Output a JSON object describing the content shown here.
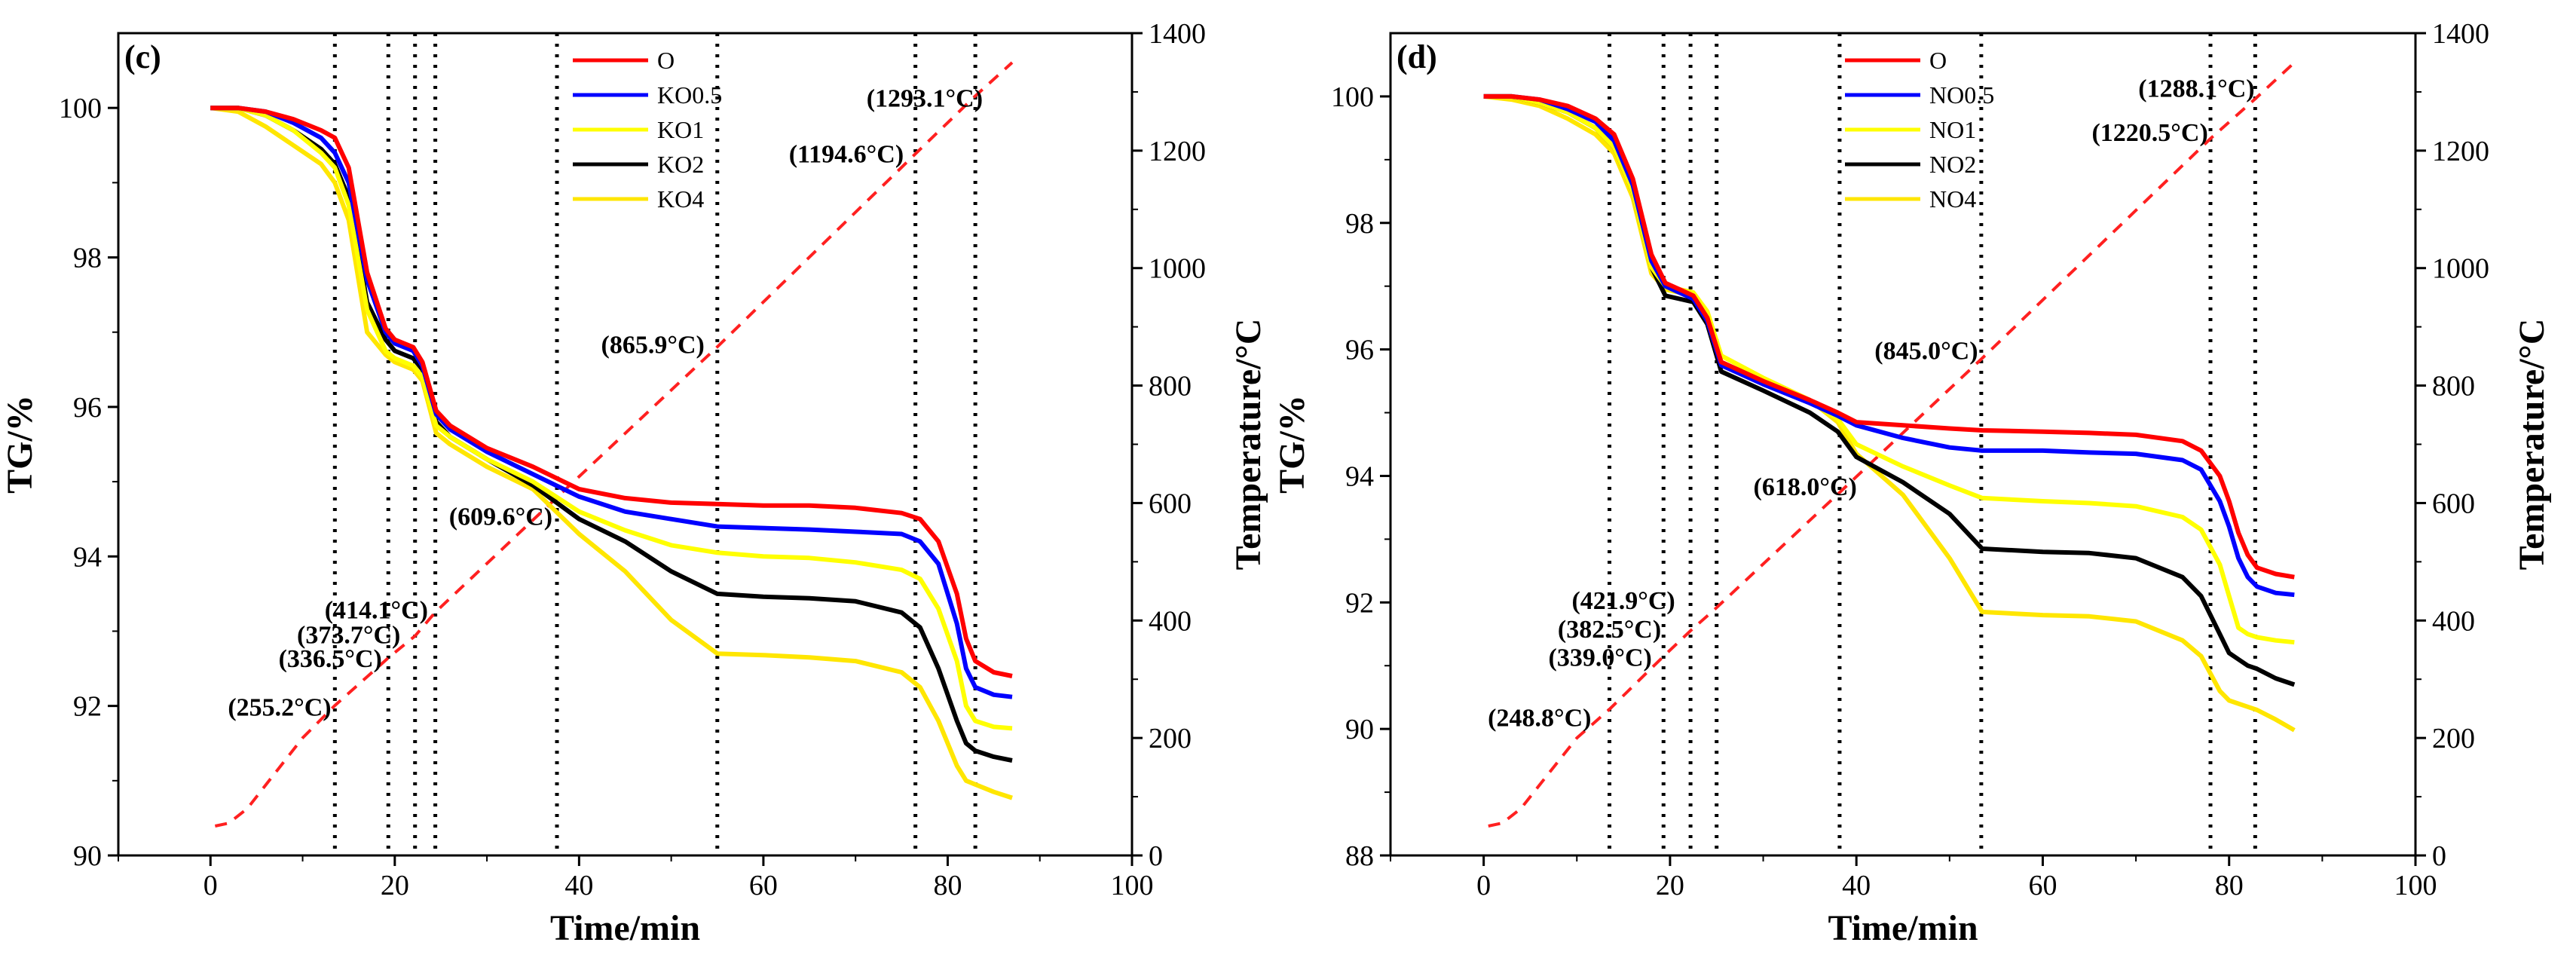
{
  "chart_data": [
    {
      "type": "line",
      "panel_label": "(c)",
      "xlabel": "Time/min",
      "ylabel": "TG/%",
      "y2label": "Temperature/°C",
      "xlim": [
        -10,
        100
      ],
      "ylim": [
        90,
        101
      ],
      "y2lim": [
        0,
        1400
      ],
      "xticks": [
        0,
        20,
        40,
        60,
        80,
        100
      ],
      "xtick_labels": [
        "0",
        "20",
        "40",
        "60",
        "80",
        "100"
      ],
      "yticks": [
        90,
        92,
        94,
        96,
        98,
        100
      ],
      "ytick_labels": [
        "90",
        "92",
        "94",
        "96",
        "98",
        "100"
      ],
      "y2ticks": [
        0,
        200,
        400,
        600,
        800,
        1000,
        1200,
        1400
      ],
      "y2tick_labels": [
        "0",
        "200",
        "400",
        "600",
        "800",
        "1000",
        "1200",
        "1400"
      ],
      "legend_position": "top-center",
      "vlines": [
        13.5,
        19.3,
        22.2,
        24.4,
        37.6,
        55.0,
        76.5,
        83.0
      ],
      "annotations": [
        {
          "text": "(255.2°C)",
          "x": 7.5,
          "y": 92.0
        },
        {
          "text": "(336.5°C)",
          "x": 13.0,
          "y": 92.65
        },
        {
          "text": "(373.7°C)",
          "x": 15.0,
          "y": 92.97
        },
        {
          "text": "(414.1°C)",
          "x": 18.0,
          "y": 93.3
        },
        {
          "text": "(609.6°C)",
          "x": 31.5,
          "y": 94.55
        },
        {
          "text": "(865.9°C)",
          "x": 48.0,
          "y": 96.85
        },
        {
          "text": "(1194.6°C)",
          "x": 69.0,
          "y": 99.4
        },
        {
          "text": "(1293.1°C)",
          "x": 77.5,
          "y": 100.15
        }
      ],
      "temperature_series": {
        "name": "Temperature",
        "color": "#ff2020",
        "x": [
          0.5,
          2,
          4,
          6,
          8,
          10,
          13.5,
          19.3,
          22.2,
          24.4,
          37.6,
          55,
          76.5,
          83,
          87
        ],
        "y": [
          50,
          55,
          80,
          120,
          160,
          200,
          255.2,
          336.5,
          373.7,
          414.1,
          609.6,
          865.9,
          1194.6,
          1293.1,
          1350
        ]
      },
      "series": [
        {
          "name": "O",
          "color": "#ff0000",
          "x": [
            0,
            3,
            6,
            9,
            12,
            13.5,
            15,
            17,
            19,
            20,
            22,
            23,
            24.5,
            26,
            30,
            35,
            40,
            45,
            50,
            55,
            60,
            65,
            70,
            75,
            77,
            79,
            81,
            82,
            83,
            85,
            87
          ],
          "y": [
            100,
            100,
            99.95,
            99.85,
            99.7,
            99.6,
            99.2,
            97.8,
            97.05,
            96.9,
            96.8,
            96.6,
            95.95,
            95.75,
            95.45,
            95.2,
            94.9,
            94.78,
            94.72,
            94.7,
            94.68,
            94.68,
            94.65,
            94.58,
            94.5,
            94.2,
            93.5,
            92.9,
            92.6,
            92.45,
            92.4
          ]
        },
        {
          "name": "KO0.5",
          "color": "#0000ff",
          "x": [
            0,
            3,
            6,
            9,
            12,
            13.5,
            15,
            17,
            19,
            20,
            22,
            23,
            24.5,
            26,
            30,
            35,
            40,
            45,
            50,
            55,
            60,
            65,
            70,
            75,
            77,
            79,
            81,
            82,
            83,
            85,
            87
          ],
          "y": [
            100,
            100,
            99.95,
            99.8,
            99.6,
            99.4,
            99.0,
            97.7,
            97.0,
            96.85,
            96.75,
            96.55,
            95.9,
            95.7,
            95.4,
            95.1,
            94.8,
            94.6,
            94.5,
            94.4,
            94.38,
            94.36,
            94.33,
            94.3,
            94.2,
            93.9,
            93.1,
            92.5,
            92.25,
            92.15,
            92.12
          ]
        },
        {
          "name": "KO1",
          "color": "#ffff00",
          "x": [
            0,
            3,
            6,
            9,
            12,
            13.5,
            15,
            17,
            19,
            20,
            22,
            23,
            24.5,
            26,
            30,
            35,
            40,
            45,
            50,
            55,
            60,
            65,
            70,
            75,
            77,
            79,
            81,
            82,
            83,
            85,
            87
          ],
          "y": [
            100,
            100,
            99.9,
            99.7,
            99.4,
            99.2,
            98.7,
            97.3,
            96.75,
            96.65,
            96.55,
            96.4,
            95.75,
            95.6,
            95.3,
            95.0,
            94.6,
            94.35,
            94.15,
            94.05,
            94.0,
            93.98,
            93.92,
            93.82,
            93.7,
            93.3,
            92.6,
            92.0,
            91.8,
            91.72,
            91.7
          ]
        },
        {
          "name": "KO2",
          "color": "#000000",
          "x": [
            0,
            3,
            6,
            9,
            12,
            13.5,
            15,
            17,
            19,
            20,
            22,
            23,
            24.5,
            26,
            30,
            35,
            40,
            45,
            50,
            55,
            60,
            65,
            70,
            75,
            77,
            79,
            81,
            82,
            83,
            85,
            87
          ],
          "y": [
            100,
            100,
            99.9,
            99.7,
            99.45,
            99.25,
            98.8,
            97.4,
            96.9,
            96.75,
            96.65,
            96.5,
            95.8,
            95.6,
            95.3,
            94.95,
            94.5,
            94.2,
            93.8,
            93.5,
            93.46,
            93.44,
            93.4,
            93.25,
            93.05,
            92.5,
            91.8,
            91.5,
            91.4,
            91.32,
            91.27
          ]
        },
        {
          "name": "KO4",
          "color": "#ffe600",
          "x": [
            0,
            3,
            6,
            9,
            12,
            13.5,
            15,
            17,
            19,
            20,
            22,
            23,
            24.5,
            26,
            30,
            35,
            40,
            45,
            50,
            55,
            60,
            65,
            70,
            75,
            77,
            79,
            81,
            82,
            83,
            85,
            87
          ],
          "y": [
            100,
            99.95,
            99.75,
            99.5,
            99.25,
            99.0,
            98.5,
            97.0,
            96.7,
            96.6,
            96.5,
            96.35,
            95.65,
            95.5,
            95.2,
            94.9,
            94.3,
            93.8,
            93.15,
            92.7,
            92.68,
            92.65,
            92.6,
            92.45,
            92.25,
            91.8,
            91.2,
            91.0,
            90.95,
            90.85,
            90.77
          ]
        }
      ]
    },
    {
      "type": "line",
      "panel_label": "(d)",
      "xlabel": "Time/min",
      "ylabel": "TG/%",
      "y2label": "Temperature/°C",
      "xlim": [
        -10,
        100
      ],
      "ylim": [
        88,
        101
      ],
      "y2lim": [
        0,
        1400
      ],
      "xticks": [
        0,
        20,
        40,
        60,
        80,
        100
      ],
      "xtick_labels": [
        "0",
        "20",
        "40",
        "60",
        "80",
        "100"
      ],
      "yticks": [
        88,
        90,
        92,
        94,
        96,
        98,
        100
      ],
      "ytick_labels": [
        "88",
        "90",
        "92",
        "94",
        "96",
        "98",
        "100"
      ],
      "y2ticks": [
        0,
        200,
        400,
        600,
        800,
        1000,
        1200,
        1400
      ],
      "y2tick_labels": [
        "0",
        "200",
        "400",
        "600",
        "800",
        "1000",
        "1200",
        "1400"
      ],
      "legend_position": "top-center",
      "vlines": [
        13.5,
        19.3,
        22.2,
        25.0,
        38.2,
        53.4,
        78.0,
        82.8
      ],
      "annotations": [
        {
          "text": "(248.8°C)",
          "x": 6.0,
          "y": 90.2
        },
        {
          "text": "(339.0°C)",
          "x": 12.5,
          "y": 91.15
        },
        {
          "text": "(382.5°C)",
          "x": 13.5,
          "y": 91.6
        },
        {
          "text": "(421.9°C)",
          "x": 15.0,
          "y": 92.05
        },
        {
          "text": "(618.0°C)",
          "x": 34.5,
          "y": 93.85
        },
        {
          "text": "(845.0°C)",
          "x": 47.5,
          "y": 96.0
        },
        {
          "text": "(1220.5°C)",
          "x": 71.5,
          "y": 99.45
        },
        {
          "text": "(1288.1°C)",
          "x": 76.5,
          "y": 100.15
        }
      ],
      "temperature_series": {
        "name": "Temperature",
        "color": "#ff2020",
        "x": [
          0.5,
          2,
          4,
          6,
          8,
          10,
          13.5,
          19.3,
          22.2,
          25,
          38.2,
          53.4,
          78,
          82.8,
          87
        ],
        "y": [
          50,
          55,
          80,
          120,
          160,
          200,
          248.8,
          339.0,
          382.5,
          421.9,
          618.0,
          845.0,
          1220.5,
          1288.1,
          1350
        ]
      },
      "series": [
        {
          "name": "O",
          "color": "#ff0000",
          "x": [
            0,
            3,
            6,
            9,
            12,
            14,
            16,
            18,
            19.5,
            21,
            22.5,
            24,
            25.5,
            30,
            35,
            38,
            40,
            45,
            50,
            53.5,
            60,
            65,
            70,
            75,
            77,
            79,
            80,
            81,
            82,
            83,
            85,
            87
          ],
          "y": [
            100,
            100,
            99.95,
            99.85,
            99.65,
            99.4,
            98.7,
            97.5,
            97.05,
            96.95,
            96.85,
            96.5,
            95.8,
            95.5,
            95.2,
            95.0,
            94.85,
            94.8,
            94.75,
            94.72,
            94.7,
            94.68,
            94.65,
            94.55,
            94.4,
            94.0,
            93.6,
            93.1,
            92.75,
            92.55,
            92.45,
            92.4
          ]
        },
        {
          "name": "NO0.5",
          "color": "#0000ff",
          "x": [
            0,
            3,
            6,
            9,
            12,
            14,
            16,
            18,
            19.5,
            21,
            22.5,
            24,
            25.5,
            30,
            35,
            38,
            40,
            45,
            50,
            53.5,
            60,
            65,
            70,
            75,
            77,
            79,
            80,
            81,
            82,
            83,
            85,
            87
          ],
          "y": [
            100,
            100,
            99.95,
            99.8,
            99.6,
            99.3,
            98.6,
            97.4,
            97.0,
            96.9,
            96.8,
            96.45,
            95.75,
            95.45,
            95.15,
            94.95,
            94.8,
            94.6,
            94.45,
            94.4,
            94.4,
            94.37,
            94.35,
            94.25,
            94.1,
            93.6,
            93.2,
            92.7,
            92.4,
            92.25,
            92.15,
            92.12
          ]
        },
        {
          "name": "NO1",
          "color": "#ffff00",
          "x": [
            0,
            3,
            6,
            9,
            12,
            14,
            16,
            18,
            19.5,
            21,
            22.5,
            24,
            25.5,
            30,
            35,
            38,
            40,
            45,
            50,
            53.5,
            60,
            65,
            70,
            75,
            77,
            79,
            80,
            81,
            82,
            83,
            85,
            87
          ],
          "y": [
            100,
            100,
            99.9,
            99.75,
            99.5,
            99.2,
            98.5,
            97.3,
            97.0,
            96.95,
            96.9,
            96.6,
            95.9,
            95.55,
            95.2,
            94.9,
            94.5,
            94.15,
            93.85,
            93.65,
            93.6,
            93.57,
            93.52,
            93.35,
            93.15,
            92.6,
            92.1,
            91.6,
            91.5,
            91.45,
            91.4,
            91.37
          ]
        },
        {
          "name": "NO2",
          "color": "#000000",
          "x": [
            0,
            3,
            6,
            9,
            12,
            14,
            16,
            18,
            19.5,
            21,
            22.5,
            24,
            25.5,
            30,
            35,
            38,
            40,
            45,
            50,
            53.5,
            60,
            65,
            70,
            75,
            77,
            79,
            80,
            81,
            82,
            83,
            85,
            87
          ],
          "y": [
            100,
            100,
            99.9,
            99.75,
            99.5,
            99.2,
            98.5,
            97.3,
            96.85,
            96.8,
            96.75,
            96.4,
            95.65,
            95.35,
            95.0,
            94.7,
            94.3,
            93.9,
            93.4,
            92.85,
            92.8,
            92.78,
            92.7,
            92.4,
            92.1,
            91.5,
            91.2,
            91.1,
            91.0,
            90.95,
            90.8,
            90.7
          ]
        },
        {
          "name": "NO4",
          "color": "#ffe600",
          "x": [
            0,
            3,
            6,
            9,
            12,
            14,
            16,
            18,
            19.5,
            21,
            22.5,
            24,
            25.5,
            30,
            35,
            38,
            40,
            45,
            50,
            53.5,
            60,
            65,
            70,
            75,
            77,
            79,
            80,
            81,
            82,
            83,
            85,
            87
          ],
          "y": [
            100,
            99.95,
            99.85,
            99.65,
            99.4,
            99.1,
            98.4,
            97.2,
            96.95,
            96.9,
            96.85,
            96.55,
            95.9,
            95.55,
            95.2,
            94.85,
            94.35,
            93.7,
            92.7,
            91.85,
            91.8,
            91.78,
            91.7,
            91.4,
            91.15,
            90.6,
            90.45,
            90.4,
            90.35,
            90.3,
            90.15,
            89.98
          ]
        }
      ]
    }
  ]
}
